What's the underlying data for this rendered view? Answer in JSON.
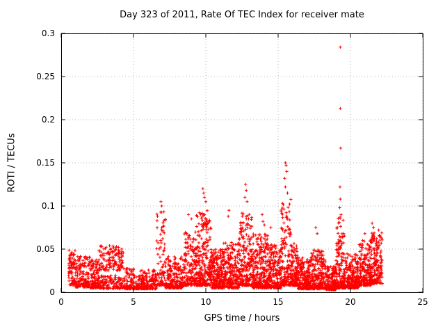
{
  "chart_data": {
    "type": "scatter",
    "title": "Day 323 of 2011, Rate Of TEC Index for receiver mate",
    "xlabel": "GPS time / hours",
    "ylabel": "ROTI / TECUs",
    "xlim": [
      0,
      25
    ],
    "ylim": [
      0,
      0.3
    ],
    "xticks": [
      0,
      5,
      10,
      15,
      20,
      25
    ],
    "yticks": [
      0,
      0.05,
      0.1,
      0.15,
      0.2,
      0.25,
      0.3
    ],
    "xticklabels": [
      "0",
      "5",
      "10",
      "15",
      "20",
      "25"
    ],
    "yticklabels": [
      "0",
      "0.05",
      "0.1",
      "0.15",
      "0.2",
      "0.25",
      "0.3"
    ],
    "grid": true,
    "legend": "none",
    "marker": "plus",
    "color": "#ff0000",
    "grid_color": "#b4b4b4",
    "seed": 1323,
    "clusters": [
      [
        0.5,
        1.0,
        80,
        0.008,
        0.05,
        1.3
      ],
      [
        1.0,
        2.0,
        150,
        0.006,
        0.042,
        1.8
      ],
      [
        2.0,
        2.6,
        120,
        0.005,
        0.038,
        1.8
      ],
      [
        2.6,
        4.3,
        120,
        0.004,
        0.02,
        1.5
      ],
      [
        2.6,
        4.3,
        130,
        0.025,
        0.055,
        1.2
      ],
      [
        4.3,
        5.2,
        120,
        0.004,
        0.028,
        2.2
      ],
      [
        5.2,
        6.6,
        200,
        0.004,
        0.026,
        2.4
      ],
      [
        6.6,
        7.2,
        90,
        0.008,
        0.095,
        2.2
      ],
      [
        7.2,
        8.5,
        230,
        0.005,
        0.042,
        2.4
      ],
      [
        8.5,
        9.3,
        160,
        0.008,
        0.07,
        2.0
      ],
      [
        9.3,
        10.4,
        280,
        0.008,
        0.095,
        2.2
      ],
      [
        10.4,
        11.2,
        230,
        0.005,
        0.05,
        2.2
      ],
      [
        11.2,
        12.3,
        260,
        0.005,
        0.058,
        2.2
      ],
      [
        12.3,
        13.2,
        220,
        0.008,
        0.092,
        2.2
      ],
      [
        13.2,
        14.3,
        280,
        0.005,
        0.068,
        2.2
      ],
      [
        14.3,
        15.2,
        240,
        0.005,
        0.055,
        2.2
      ],
      [
        15.2,
        15.9,
        170,
        0.008,
        0.11,
        2.3
      ],
      [
        15.9,
        16.4,
        140,
        0.008,
        0.058,
        2.2
      ],
      [
        16.4,
        17.3,
        220,
        0.004,
        0.04,
        2.2
      ],
      [
        17.3,
        18.3,
        240,
        0.004,
        0.05,
        2.3
      ],
      [
        18.3,
        19.0,
        200,
        0.003,
        0.03,
        2.2
      ],
      [
        19.0,
        19.6,
        170,
        0.005,
        0.088,
        2.4
      ],
      [
        19.6,
        20.6,
        240,
        0.005,
        0.045,
        2.2
      ],
      [
        20.6,
        21.4,
        200,
        0.008,
        0.06,
        2.2
      ],
      [
        21.4,
        22.2,
        190,
        0.01,
        0.07,
        1.9
      ]
    ],
    "outliers": [
      [
        6.9,
        0.105
      ],
      [
        6.95,
        0.1
      ],
      [
        8.8,
        0.09
      ],
      [
        9.0,
        0.085
      ],
      [
        9.8,
        0.12
      ],
      [
        9.85,
        0.115
      ],
      [
        9.9,
        0.11
      ],
      [
        10.0,
        0.105
      ],
      [
        11.6,
        0.095
      ],
      [
        11.55,
        0.088
      ],
      [
        12.75,
        0.125
      ],
      [
        12.8,
        0.118
      ],
      [
        12.7,
        0.11
      ],
      [
        12.85,
        0.105
      ],
      [
        13.9,
        0.09
      ],
      [
        13.95,
        0.082
      ],
      [
        14.05,
        0.078
      ],
      [
        14.5,
        0.075
      ],
      [
        15.5,
        0.15
      ],
      [
        15.55,
        0.147
      ],
      [
        15.6,
        0.14
      ],
      [
        15.45,
        0.132
      ],
      [
        15.5,
        0.122
      ],
      [
        15.65,
        0.115
      ],
      [
        17.6,
        0.075
      ],
      [
        17.7,
        0.068
      ],
      [
        19.3,
        0.284
      ],
      [
        19.3,
        0.213
      ],
      [
        19.32,
        0.167
      ],
      [
        19.28,
        0.122
      ],
      [
        19.3,
        0.108
      ],
      [
        19.26,
        0.098
      ],
      [
        19.35,
        0.09
      ],
      [
        21.0,
        0.068
      ],
      [
        21.5,
        0.08
      ],
      [
        21.6,
        0.075
      ],
      [
        21.95,
        0.072
      ],
      [
        22.0,
        0.065
      ]
    ]
  }
}
